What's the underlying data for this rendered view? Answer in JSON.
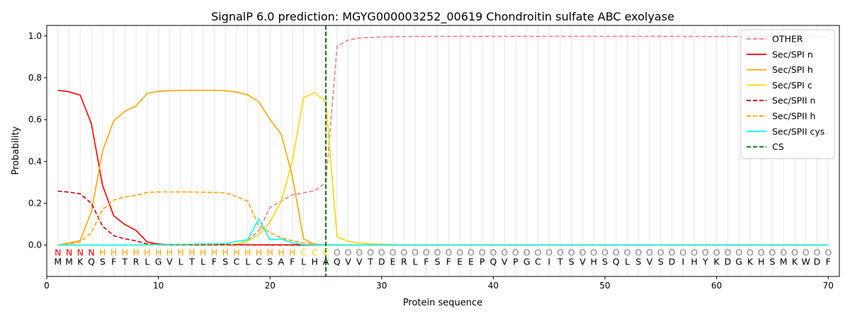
{
  "chart_data": {
    "type": "line",
    "title": "SignalP 6.0 prediction: MGYG000003252_00619 Chondroitin sulfate ABC exolyase",
    "xlabel": "Protein sequence",
    "ylabel": "Probability",
    "xlim": [
      0,
      71
    ],
    "ylim": [
      -0.15,
      1.05
    ],
    "x_ticks": [
      0,
      10,
      20,
      30,
      40,
      50,
      60,
      70
    ],
    "y_ticks": [
      0.0,
      0.2,
      0.4,
      0.6,
      0.8,
      1.0
    ],
    "grid": "vertical lines at each residue",
    "legend_position": "top-right",
    "sequence": [
      "M",
      "M",
      "K",
      "Q",
      "S",
      "F",
      "T",
      "R",
      "L",
      "G",
      "V",
      "L",
      "T",
      "L",
      "F",
      "S",
      "C",
      "L",
      "C",
      "S",
      "A",
      "F",
      "L",
      "H",
      "A",
      "Q",
      "V",
      "V",
      "T",
      "D",
      "E",
      "R",
      "L",
      "F",
      "S",
      "F",
      "E",
      "E",
      "P",
      "Q",
      "V",
      "P",
      "G",
      "C",
      "I",
      "T",
      "S",
      "V",
      "H",
      "S",
      "Q",
      "L",
      "S",
      "V",
      "S",
      "D",
      "I",
      "H",
      "Y",
      "K",
      "D",
      "G",
      "K",
      "H",
      "S",
      "M",
      "K",
      "W",
      "D",
      "F"
    ],
    "region_labels": [
      "N",
      "N",
      "N",
      "N",
      "H",
      "H",
      "H",
      "H",
      "H",
      "H",
      "H",
      "H",
      "H",
      "H",
      "H",
      "H",
      "H",
      "H",
      "H",
      "H",
      "H",
      "H",
      "C",
      "C",
      "C",
      "O",
      "O",
      "O",
      "O",
      "O",
      "O",
      "O",
      "O",
      "O",
      "O",
      "O",
      "O",
      "O",
      "O",
      "O",
      "O",
      "O",
      "O",
      "O",
      "O",
      "O",
      "O",
      "O",
      "O",
      "O",
      "O",
      "O",
      "O",
      "O",
      "O",
      "O",
      "O",
      "O",
      "O",
      "O",
      "O",
      "O",
      "O",
      "O",
      "O",
      "O",
      "O",
      "O",
      "O",
      "O"
    ],
    "region_colors": {
      "N": "#ff0000",
      "H": "#ffa500",
      "C": "#ffd700",
      "O": "#808080"
    },
    "cs_position": 25,
    "series": [
      {
        "name": "OTHER",
        "color": "#f08080",
        "dash": "dashed",
        "x": [
          1,
          2,
          3,
          4,
          5,
          6,
          7,
          8,
          9,
          10,
          11,
          12,
          13,
          14,
          15,
          16,
          17,
          18,
          19,
          20,
          21,
          22,
          23,
          24,
          25,
          26,
          27,
          28,
          29,
          30,
          32,
          35,
          40,
          45,
          50,
          55,
          60,
          65,
          70
        ],
        "values": [
          0.0,
          0.0,
          0.0,
          0.0,
          0.0,
          0.0,
          0.0,
          0.0,
          0.0,
          0.0,
          0.0,
          0.0,
          0.0,
          0.0,
          0.0,
          0.0,
          0.0,
          0.02,
          0.07,
          0.18,
          0.21,
          0.24,
          0.25,
          0.26,
          0.3,
          0.95,
          0.98,
          0.99,
          0.993,
          0.995,
          0.997,
          0.998,
          0.998,
          0.998,
          0.998,
          0.998,
          0.997,
          0.997,
          0.996
        ]
      },
      {
        "name": "Sec/SPI n",
        "color": "#ff0000",
        "dash": "solid",
        "x": [
          1,
          2,
          3,
          4,
          5,
          6,
          7,
          8,
          9,
          10,
          11,
          12,
          13,
          14,
          15,
          16,
          17,
          18,
          19,
          20,
          21,
          22,
          23,
          24,
          25,
          30,
          40,
          50,
          60,
          70
        ],
        "values": [
          0.74,
          0.733,
          0.717,
          0.58,
          0.285,
          0.14,
          0.098,
          0.07,
          0.015,
          0.005,
          0.002,
          0.002,
          0.002,
          0.002,
          0.002,
          0.002,
          0.002,
          0.001,
          0.001,
          0.001,
          0.001,
          0.001,
          0.0,
          0.0,
          0.0,
          0.0,
          0.0,
          0.0,
          0.0,
          0.0
        ]
      },
      {
        "name": "Sec/SPI h",
        "color": "#ffa500",
        "dash": "solid",
        "x": [
          1,
          2,
          3,
          4,
          5,
          6,
          7,
          8,
          9,
          10,
          11,
          12,
          13,
          14,
          15,
          16,
          17,
          18,
          19,
          20,
          21,
          22,
          23,
          24,
          25,
          30,
          40,
          50,
          60,
          70
        ],
        "values": [
          0.0,
          0.01,
          0.022,
          0.16,
          0.45,
          0.595,
          0.64,
          0.665,
          0.725,
          0.735,
          0.738,
          0.74,
          0.74,
          0.74,
          0.74,
          0.738,
          0.732,
          0.718,
          0.685,
          0.6,
          0.53,
          0.33,
          0.03,
          0.003,
          0.001,
          0.0,
          0.0,
          0.0,
          0.0,
          0.0
        ]
      },
      {
        "name": "Sec/SPI c",
        "color": "#ffd700",
        "dash": "solid",
        "x": [
          1,
          2,
          3,
          4,
          5,
          6,
          7,
          8,
          9,
          10,
          11,
          12,
          13,
          14,
          15,
          16,
          17,
          18,
          19,
          20,
          21,
          22,
          23,
          24,
          25,
          26,
          27,
          28,
          29,
          30,
          31,
          32,
          35,
          40,
          50,
          60,
          70
        ],
        "values": [
          0.0,
          0.0,
          0.0,
          0.0,
          0.0,
          0.0,
          0.0,
          0.0,
          0.0,
          0.0,
          0.0,
          0.0,
          0.0,
          0.0,
          0.0,
          0.0,
          0.005,
          0.02,
          0.05,
          0.11,
          0.21,
          0.4,
          0.705,
          0.73,
          0.685,
          0.04,
          0.018,
          0.01,
          0.006,
          0.004,
          0.002,
          0.001,
          0.0,
          0.0,
          0.0,
          0.0,
          0.0
        ]
      },
      {
        "name": "Sec/SPII n",
        "color": "#cc0000",
        "dash": "dashed",
        "x": [
          1,
          2,
          3,
          4,
          5,
          6,
          7,
          8,
          9,
          10,
          11,
          12,
          13,
          14,
          15,
          16,
          17,
          18,
          19,
          20,
          21,
          22,
          23,
          24,
          25,
          30,
          40,
          50,
          60,
          70
        ],
        "values": [
          0.258,
          0.253,
          0.245,
          0.2,
          0.09,
          0.045,
          0.03,
          0.02,
          0.005,
          0.002,
          0.001,
          0.001,
          0.001,
          0.001,
          0.001,
          0.001,
          0.001,
          0.001,
          0.001,
          0.0,
          0.0,
          0.0,
          0.0,
          0.0,
          0.0,
          0.0,
          0.0,
          0.0,
          0.0,
          0.0
        ]
      },
      {
        "name": "Sec/SPII h",
        "color": "#ffa500",
        "dash": "dashed",
        "x": [
          1,
          2,
          3,
          4,
          5,
          6,
          7,
          8,
          9,
          10,
          11,
          12,
          13,
          14,
          15,
          16,
          17,
          18,
          19,
          20,
          21,
          22,
          23,
          24,
          25,
          30,
          40,
          50,
          60,
          70
        ],
        "values": [
          0.0,
          0.005,
          0.015,
          0.06,
          0.17,
          0.215,
          0.23,
          0.238,
          0.252,
          0.254,
          0.254,
          0.254,
          0.254,
          0.253,
          0.252,
          0.25,
          0.232,
          0.21,
          0.09,
          0.06,
          0.035,
          0.02,
          0.01,
          0.005,
          0.002,
          0.0,
          0.0,
          0.0,
          0.0,
          0.0
        ]
      },
      {
        "name": "Sec/SPII cys",
        "color": "#00ffff",
        "dash": "solid",
        "x": [
          1,
          2,
          3,
          4,
          5,
          6,
          7,
          8,
          9,
          10,
          11,
          12,
          13,
          14,
          15,
          16,
          17,
          18,
          19,
          20,
          21,
          22,
          23,
          24,
          25,
          30,
          40,
          50,
          60,
          70
        ],
        "values": [
          0.0,
          0.0,
          0.0,
          0.0,
          0.0,
          0.0,
          0.0,
          0.0,
          0.002,
          0.002,
          0.003,
          0.003,
          0.004,
          0.005,
          0.005,
          0.007,
          0.018,
          0.025,
          0.125,
          0.025,
          0.03,
          0.01,
          0.002,
          0.001,
          0.0,
          0.0,
          0.0,
          0.0,
          0.0,
          0.0
        ]
      }
    ],
    "legend": [
      {
        "name": "OTHER",
        "color": "#f08080",
        "dash": "dashed"
      },
      {
        "name": "Sec/SPI n",
        "color": "#ff0000",
        "dash": "solid"
      },
      {
        "name": "Sec/SPI h",
        "color": "#ffa500",
        "dash": "solid"
      },
      {
        "name": "Sec/SPI c",
        "color": "#ffd700",
        "dash": "solid"
      },
      {
        "name": "Sec/SPII n",
        "color": "#cc0000",
        "dash": "dashed"
      },
      {
        "name": "Sec/SPII h",
        "color": "#ffa500",
        "dash": "dashed"
      },
      {
        "name": "Sec/SPII cys",
        "color": "#00ffff",
        "dash": "solid"
      },
      {
        "name": "CS",
        "color": "#006400",
        "dash": "dashed"
      }
    ]
  }
}
